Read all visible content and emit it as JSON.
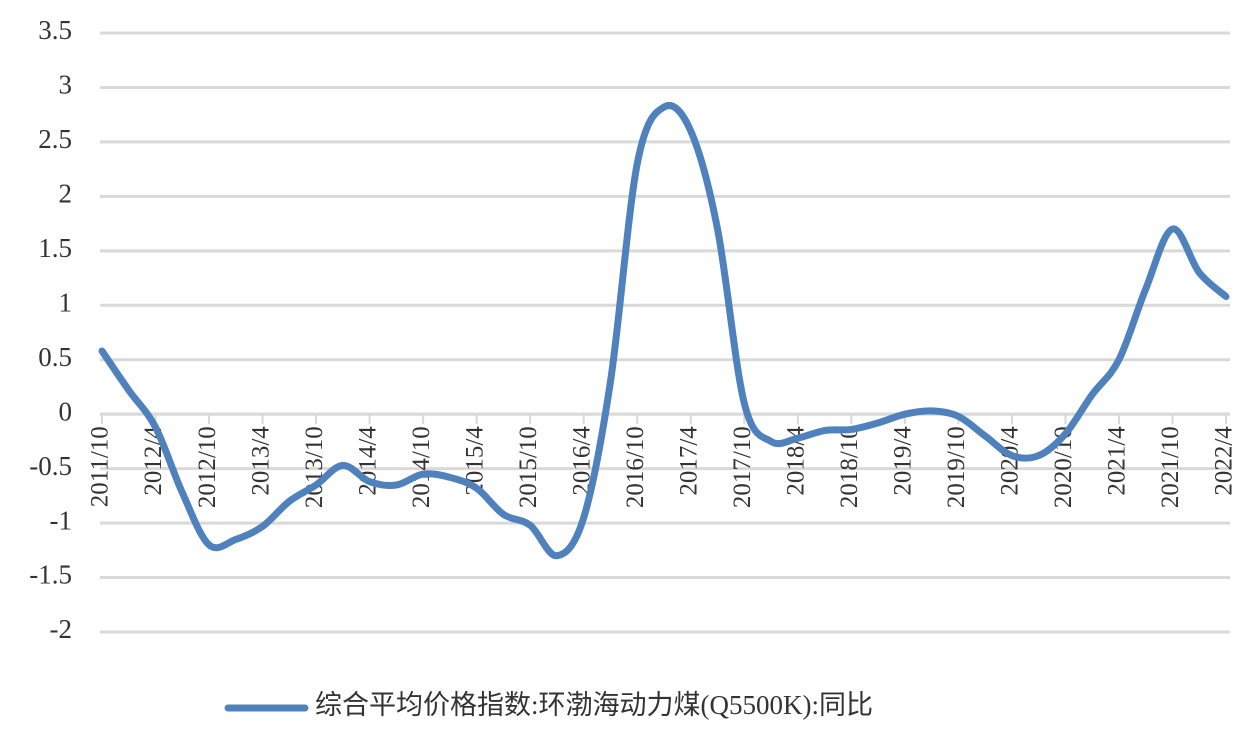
{
  "chart_data": {
    "type": "line",
    "categories": [
      "2011/10",
      null,
      "2012/4",
      null,
      "2012/10",
      null,
      "2013/4",
      null,
      "2013/10",
      null,
      "2014/4",
      null,
      "2014/10",
      null,
      "2015/4",
      null,
      "2015/10",
      null,
      "2016/4",
      null,
      "2016/10",
      null,
      "2017/4",
      null,
      "2017/10",
      null,
      "2018/4",
      null,
      "2018/10",
      null,
      "2019/4",
      null,
      "2019/10",
      null,
      "2020/4",
      null,
      "2020/10",
      null,
      "2021/4",
      null,
      "2021/10",
      null,
      "2022/4"
    ],
    "series": [
      {
        "name": "综合平均价格指数:环渤海动力煤(Q5500K):同比",
        "color": "#4f81bd",
        "values": [
          0.58,
          0.22,
          -0.12,
          -0.72,
          -1.2,
          -1.15,
          -1.03,
          -0.8,
          -0.65,
          -0.47,
          -0.62,
          -0.65,
          -0.55,
          -0.58,
          -0.68,
          -0.92,
          -1.02,
          -1.3,
          -0.95,
          0.3,
          2.3,
          2.82,
          2.6,
          1.7,
          0.1,
          -0.25,
          -0.22,
          -0.15,
          -0.14,
          -0.08,
          0.0,
          0.03,
          -0.02,
          -0.2,
          -0.38,
          -0.38,
          -0.18,
          0.18,
          0.5,
          1.15,
          1.7,
          1.3,
          1.08
        ]
      }
    ],
    "ylim": [
      -2,
      3.5
    ],
    "yticks": [
      -2,
      -1.5,
      -1,
      -0.5,
      0,
      0.5,
      1,
      1.5,
      2,
      2.5,
      3,
      3.5
    ],
    "grid": true,
    "legend": "bottom"
  }
}
